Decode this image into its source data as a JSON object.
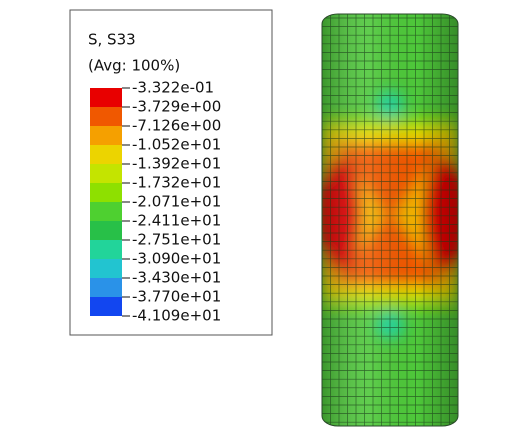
{
  "legend": {
    "title": "S, S33",
    "subtitle": "(Avg: 100%)",
    "labels": [
      "-3.322e-01",
      "-3.729e+00",
      "-7.126e+00",
      "-1.052e+01",
      "-1.392e+01",
      "-1.732e+01",
      "-2.071e+01",
      "-2.411e+01",
      "-2.751e+01",
      "-3.090e+01",
      "-3.430e+01",
      "-3.770e+01",
      "-4.109e+01"
    ],
    "colors": [
      "#e80000",
      "#f05800",
      "#f5a000",
      "#ecd400",
      "#c4e400",
      "#8ee000",
      "#4ed030",
      "#28c048",
      "#22d49a",
      "#22c4d0",
      "#2a92e8",
      "#1246f0"
    ]
  }
}
